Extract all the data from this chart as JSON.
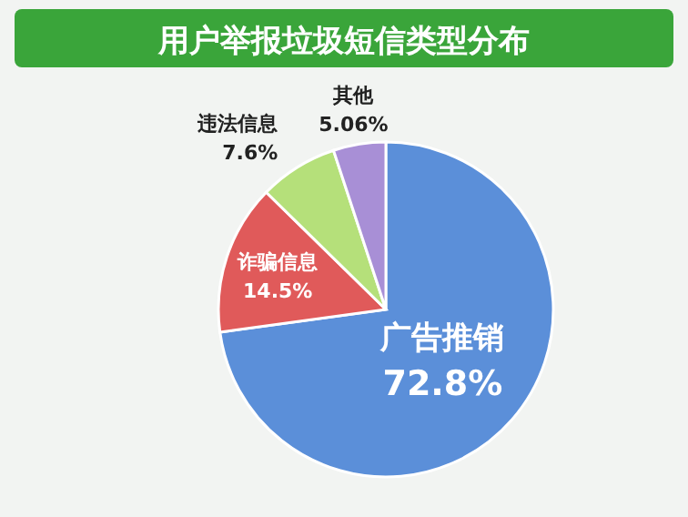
{
  "chart_data": {
    "type": "pie",
    "title": "用户举报垃圾短信类型分布",
    "categories": [
      "广告推销",
      "诈骗信息",
      "违法信息",
      "其他"
    ],
    "values": [
      72.8,
      14.5,
      7.6,
      5.06
    ],
    "value_labels": [
      "72.8%",
      "14.5%",
      "7.6%",
      "5.06%"
    ],
    "colors": [
      "#5b8fd9",
      "#e05a5a",
      "#b5e07a",
      "#a88fd6"
    ]
  }
}
